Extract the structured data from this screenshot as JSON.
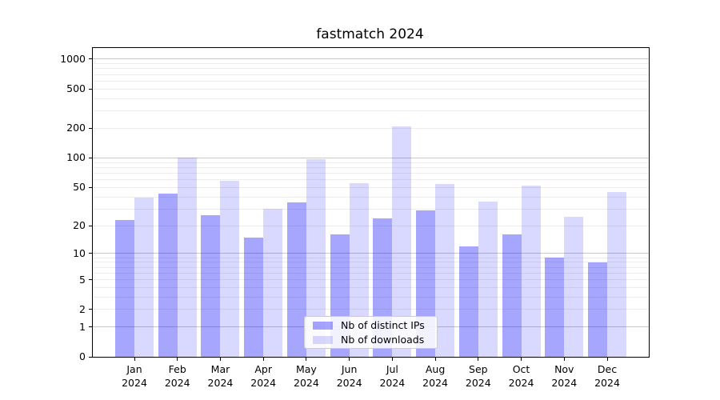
{
  "title": "fastmatch 2024",
  "chart_data": {
    "type": "bar",
    "title": "fastmatch 2024",
    "categories": [
      "Jan 2024",
      "Feb 2024",
      "Mar 2024",
      "Apr 2024",
      "May 2024",
      "Jun 2024",
      "Jul 2024",
      "Aug 2024",
      "Sep 2024",
      "Oct 2024",
      "Nov 2024",
      "Dec 2024"
    ],
    "series": [
      {
        "name": "Nb of distinct IPs",
        "color": "rgba(0,0,255,0.35)",
        "values": [
          23,
          43,
          26,
          15,
          35,
          16,
          24,
          29,
          12,
          16,
          9,
          8
        ]
      },
      {
        "name": "Nb of downloads",
        "color": "rgba(0,0,255,0.15)",
        "values": [
          39,
          100,
          58,
          30,
          97,
          55,
          210,
          54,
          36,
          52,
          25,
          45
        ]
      }
    ],
    "xlabel": "",
    "ylabel": "",
    "yscale": "log1p",
    "y_ticks": [
      0,
      1,
      2,
      5,
      10,
      20,
      50,
      100,
      200,
      500,
      1000
    ],
    "ylim": [
      0,
      1300
    ],
    "grid": "on",
    "legend_position": "lower center",
    "colors": {
      "bar_distinct_ips": "rgba(0,0,255,0.35)",
      "bar_downloads": "rgba(0,0,255,0.15)",
      "major_gridline": "#c9c9c9",
      "minor_gridline": "#ededed",
      "spine": "#000000"
    }
  }
}
